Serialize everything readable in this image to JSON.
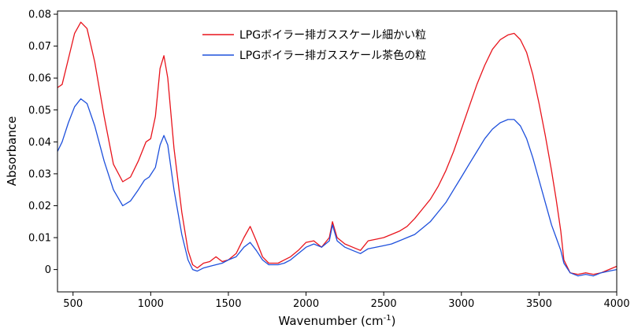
{
  "chart_data": {
    "type": "line",
    "title": "",
    "xlabel": "Wavenumber (cm",
    "xlabel_sup": "-1",
    "xlabel_close": ")",
    "ylabel": "Absorbance",
    "xlim": [
      400,
      4000
    ],
    "ylim": [
      -0.007,
      0.081
    ],
    "x_ticks": [
      500,
      1000,
      1500,
      2000,
      2500,
      3000,
      3500,
      4000
    ],
    "y_ticks": [
      0,
      0.01,
      0.02,
      0.03,
      0.04,
      0.05,
      0.06,
      0.07,
      0.08
    ],
    "grid": false,
    "legend_position": "top-center",
    "series": [
      {
        "name": "LPGボイラー排ガススケール細かい粒",
        "color": "#e8141c",
        "points": [
          [
            400,
            0.057
          ],
          [
            430,
            0.058
          ],
          [
            470,
            0.066
          ],
          [
            510,
            0.074
          ],
          [
            550,
            0.0775
          ],
          [
            590,
            0.0755
          ],
          [
            640,
            0.065
          ],
          [
            700,
            0.048
          ],
          [
            760,
            0.033
          ],
          [
            820,
            0.0275
          ],
          [
            870,
            0.029
          ],
          [
            920,
            0.034
          ],
          [
            970,
            0.04
          ],
          [
            1000,
            0.041
          ],
          [
            1030,
            0.048
          ],
          [
            1060,
            0.063
          ],
          [
            1085,
            0.067
          ],
          [
            1110,
            0.06
          ],
          [
            1150,
            0.038
          ],
          [
            1200,
            0.018
          ],
          [
            1240,
            0.006
          ],
          [
            1270,
            0.0015
          ],
          [
            1300,
            0.0005
          ],
          [
            1340,
            0.002
          ],
          [
            1380,
            0.0025
          ],
          [
            1420,
            0.004
          ],
          [
            1460,
            0.0025
          ],
          [
            1500,
            0.003
          ],
          [
            1550,
            0.005
          ],
          [
            1600,
            0.01
          ],
          [
            1640,
            0.0135
          ],
          [
            1680,
            0.009
          ],
          [
            1720,
            0.004
          ],
          [
            1760,
            0.002
          ],
          [
            1820,
            0.002
          ],
          [
            1860,
            0.003
          ],
          [
            1900,
            0.004
          ],
          [
            1950,
            0.006
          ],
          [
            2000,
            0.0085
          ],
          [
            2050,
            0.009
          ],
          [
            2100,
            0.007
          ],
          [
            2150,
            0.01
          ],
          [
            2170,
            0.015
          ],
          [
            2200,
            0.01
          ],
          [
            2250,
            0.008
          ],
          [
            2300,
            0.007
          ],
          [
            2350,
            0.006
          ],
          [
            2400,
            0.009
          ],
          [
            2450,
            0.0095
          ],
          [
            2500,
            0.01
          ],
          [
            2550,
            0.011
          ],
          [
            2600,
            0.012
          ],
          [
            2650,
            0.0135
          ],
          [
            2700,
            0.016
          ],
          [
            2750,
            0.019
          ],
          [
            2800,
            0.022
          ],
          [
            2850,
            0.026
          ],
          [
            2900,
            0.031
          ],
          [
            2950,
            0.037
          ],
          [
            3000,
            0.044
          ],
          [
            3050,
            0.051
          ],
          [
            3100,
            0.058
          ],
          [
            3150,
            0.064
          ],
          [
            3200,
            0.069
          ],
          [
            3250,
            0.072
          ],
          [
            3300,
            0.0735
          ],
          [
            3340,
            0.074
          ],
          [
            3380,
            0.072
          ],
          [
            3420,
            0.068
          ],
          [
            3460,
            0.061
          ],
          [
            3500,
            0.052
          ],
          [
            3540,
            0.042
          ],
          [
            3580,
            0.031
          ],
          [
            3610,
            0.022
          ],
          [
            3640,
            0.012
          ],
          [
            3660,
            0.003
          ],
          [
            3700,
            -0.001
          ],
          [
            3750,
            -0.0015
          ],
          [
            3800,
            -0.001
          ],
          [
            3850,
            -0.0015
          ],
          [
            3900,
            -0.001
          ],
          [
            3950,
            0.0
          ],
          [
            4000,
            0.001
          ]
        ]
      },
      {
        "name": "LPGボイラー排ガススケール茶色の粒",
        "color": "#1e50dc",
        "points": [
          [
            400,
            0.037
          ],
          [
            430,
            0.04
          ],
          [
            470,
            0.046
          ],
          [
            510,
            0.051
          ],
          [
            550,
            0.0535
          ],
          [
            590,
            0.052
          ],
          [
            640,
            0.045
          ],
          [
            700,
            0.034
          ],
          [
            760,
            0.025
          ],
          [
            820,
            0.02
          ],
          [
            870,
            0.0215
          ],
          [
            920,
            0.025
          ],
          [
            960,
            0.028
          ],
          [
            990,
            0.029
          ],
          [
            1030,
            0.032
          ],
          [
            1060,
            0.039
          ],
          [
            1085,
            0.042
          ],
          [
            1110,
            0.039
          ],
          [
            1150,
            0.025
          ],
          [
            1200,
            0.011
          ],
          [
            1240,
            0.003
          ],
          [
            1270,
            0.0
          ],
          [
            1300,
            -0.0005
          ],
          [
            1340,
            0.0005
          ],
          [
            1380,
            0.001
          ],
          [
            1420,
            0.0015
          ],
          [
            1460,
            0.002
          ],
          [
            1500,
            0.003
          ],
          [
            1550,
            0.004
          ],
          [
            1600,
            0.007
          ],
          [
            1640,
            0.0085
          ],
          [
            1680,
            0.006
          ],
          [
            1720,
            0.003
          ],
          [
            1760,
            0.0015
          ],
          [
            1820,
            0.0015
          ],
          [
            1860,
            0.002
          ],
          [
            1900,
            0.003
          ],
          [
            1950,
            0.005
          ],
          [
            2000,
            0.007
          ],
          [
            2050,
            0.008
          ],
          [
            2100,
            0.007
          ],
          [
            2150,
            0.009
          ],
          [
            2170,
            0.014
          ],
          [
            2200,
            0.009
          ],
          [
            2250,
            0.007
          ],
          [
            2300,
            0.006
          ],
          [
            2350,
            0.005
          ],
          [
            2400,
            0.0065
          ],
          [
            2450,
            0.007
          ],
          [
            2500,
            0.0075
          ],
          [
            2550,
            0.008
          ],
          [
            2600,
            0.009
          ],
          [
            2650,
            0.01
          ],
          [
            2700,
            0.011
          ],
          [
            2750,
            0.013
          ],
          [
            2800,
            0.015
          ],
          [
            2850,
            0.018
          ],
          [
            2900,
            0.021
          ],
          [
            2950,
            0.025
          ],
          [
            3000,
            0.029
          ],
          [
            3050,
            0.033
          ],
          [
            3100,
            0.037
          ],
          [
            3150,
            0.041
          ],
          [
            3200,
            0.044
          ],
          [
            3250,
            0.046
          ],
          [
            3300,
            0.047
          ],
          [
            3340,
            0.047
          ],
          [
            3380,
            0.045
          ],
          [
            3420,
            0.041
          ],
          [
            3460,
            0.035
          ],
          [
            3500,
            0.028
          ],
          [
            3540,
            0.021
          ],
          [
            3580,
            0.014
          ],
          [
            3610,
            0.01
          ],
          [
            3640,
            0.006
          ],
          [
            3660,
            0.002
          ],
          [
            3700,
            -0.001
          ],
          [
            3750,
            -0.002
          ],
          [
            3800,
            -0.0015
          ],
          [
            3850,
            -0.002
          ],
          [
            3900,
            -0.001
          ],
          [
            3950,
            -0.0005
          ],
          [
            4000,
            0.0
          ]
        ]
      }
    ]
  }
}
